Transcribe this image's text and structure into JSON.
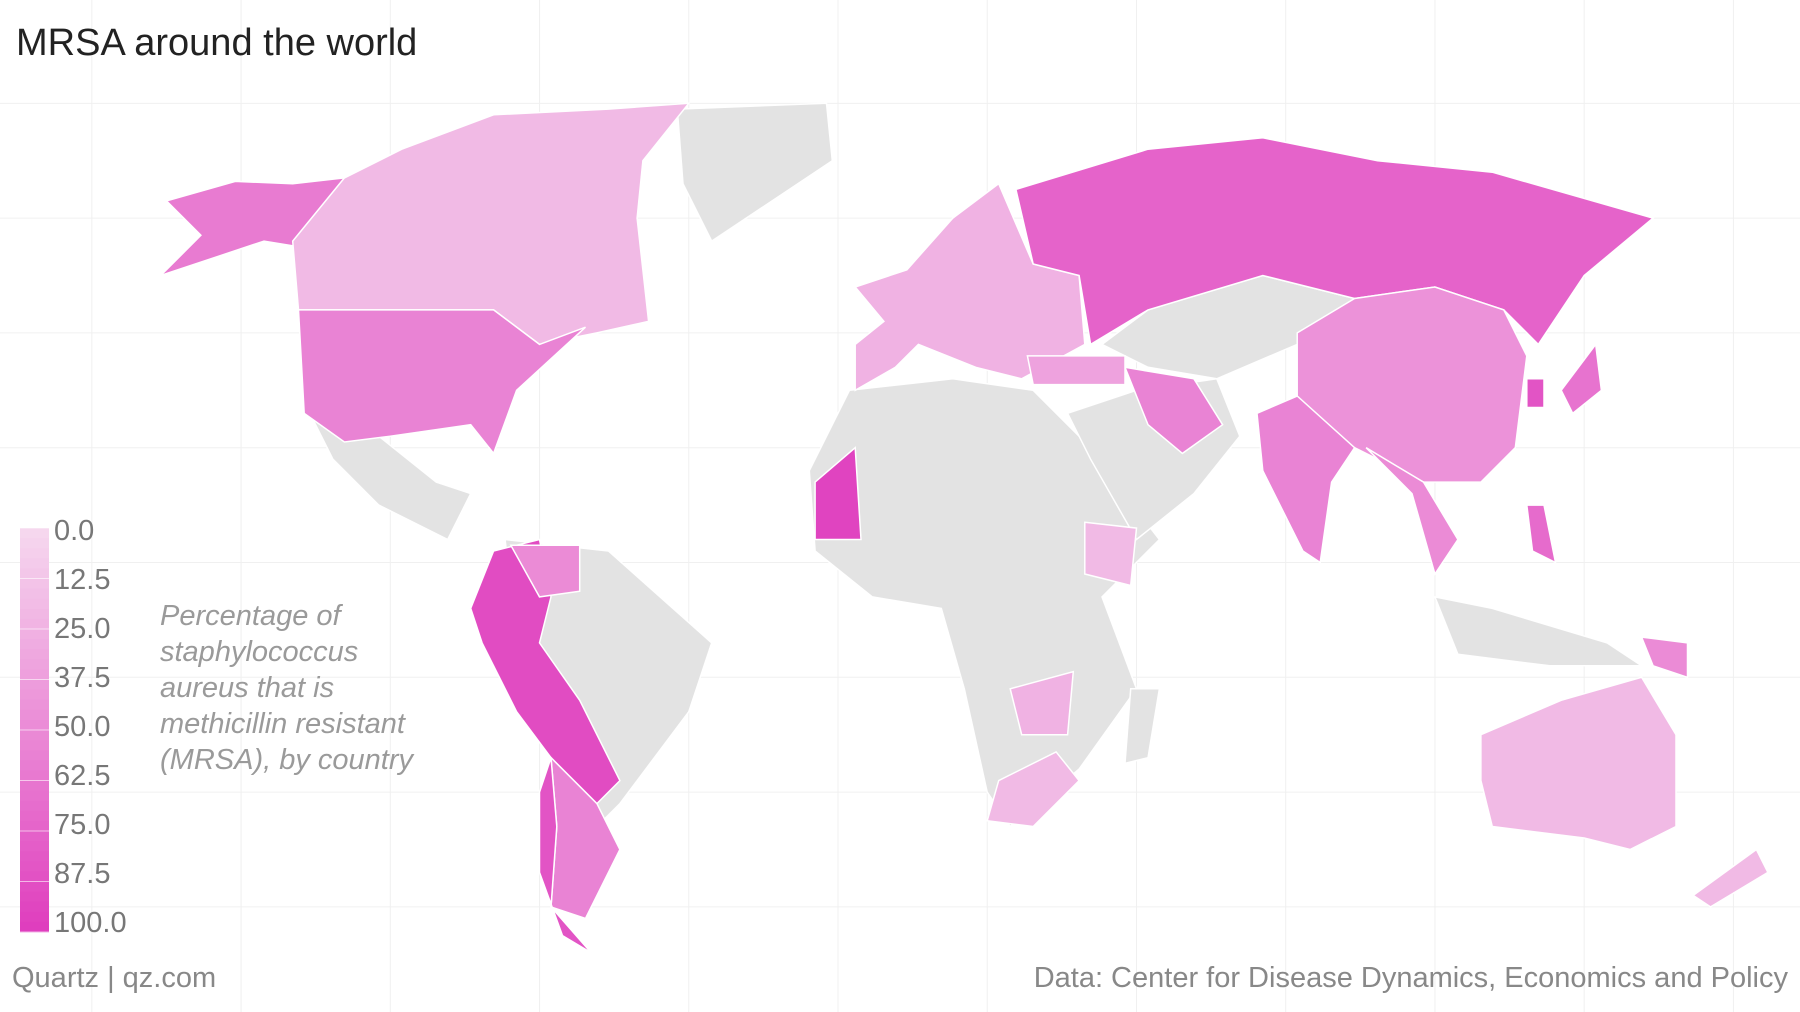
{
  "chart_data": {
    "type": "choropleth",
    "title": "MRSA around the world",
    "legend_title": "Percentage of staphylococcus aureus that is methicillin resistant (MRSA), by country",
    "source": "Data: Center for Disease Dynamics, Economics and Policy",
    "credit": "Quartz | qz.com",
    "color_range": [
      "#f6d9ef",
      "#df3cbd"
    ],
    "no_data_color": "#e3e3e3",
    "legend_lim": [
      0,
      100
    ],
    "legend_ticks": [
      {
        "value": 0,
        "label": "0.0"
      },
      {
        "value": 12.5,
        "label": "12.5"
      },
      {
        "value": 25,
        "label": "25.0"
      },
      {
        "value": 37.5,
        "label": "37.5"
      },
      {
        "value": 50,
        "label": "50.0"
      },
      {
        "value": 62.5,
        "label": "62.5"
      },
      {
        "value": 75,
        "label": "75.0"
      },
      {
        "value": 87.5,
        "label": "87.5"
      },
      {
        "value": 100,
        "label": "100.0"
      }
    ],
    "values": [
      60,
      20,
      55,
      90,
      50,
      55,
      85,
      95,
      20,
      25,
      20,
      25,
      75,
      45,
      55,
      35,
      55,
      50,
      50,
      20,
      20,
      65,
      85,
      70
    ]
  }
}
